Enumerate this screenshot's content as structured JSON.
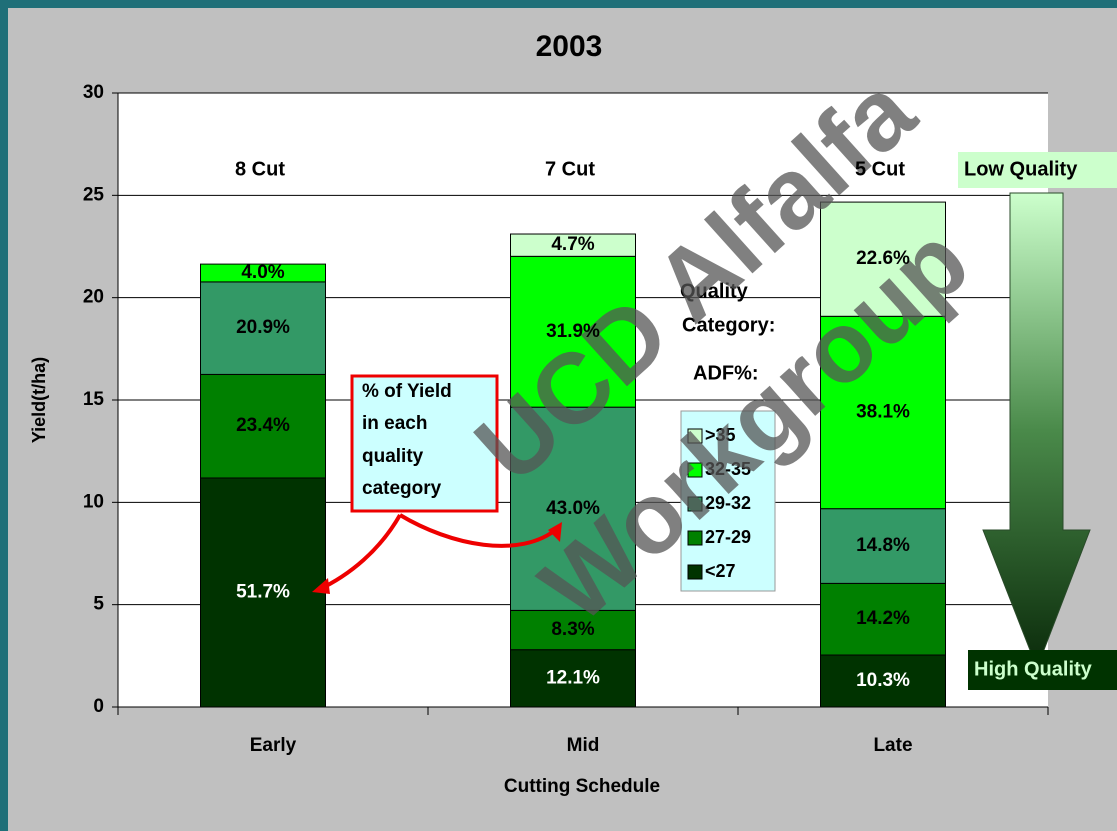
{
  "chart_data": {
    "type": "bar",
    "stacked": true,
    "title": "2003",
    "x_label": "Cutting Schedule",
    "y_label": "Yield(t/ha)",
    "categories": [
      "Early",
      "Mid",
      "Late"
    ],
    "cut_labels": [
      "8 Cut",
      "7 Cut",
      "5 Cut"
    ],
    "series": [
      {
        "name": "<27",
        "color": "#003300",
        "label_color": "#ffffff",
        "values": [
          11.19,
          2.8,
          2.54
        ],
        "value_labels": [
          "51.7%",
          "12.1%",
          "10.3%"
        ]
      },
      {
        "name": "27-29",
        "color": "#008000",
        "label_color": "#000000",
        "values": [
          5.06,
          1.92,
          3.5
        ],
        "value_labels": [
          "23.4%",
          "8.3%",
          "14.2%"
        ]
      },
      {
        "name": "29-32",
        "color": "#339966",
        "label_color": "#000000",
        "values": [
          4.52,
          9.93,
          3.65
        ],
        "value_labels": [
          "20.9%",
          "43.0%",
          "14.8%"
        ]
      },
      {
        "name": "32-35",
        "color": "#00ff00",
        "label_color": "#000000",
        "values": [
          0.87,
          7.37,
          9.4
        ],
        "value_labels": [
          "4.0%",
          "31.9%",
          "38.1%"
        ]
      },
      {
        "name": ">35",
        "color": "#ccffcc",
        "label_color": "#000000",
        "values": [
          0,
          1.09,
          5.58
        ],
        "value_labels": [
          null,
          "4.7%",
          "22.6%"
        ]
      }
    ],
    "ylim": [
      0,
      30
    ],
    "yticks": [
      0,
      5,
      10,
      15,
      20,
      25,
      30
    ],
    "grid": true,
    "legend_title": [
      "Quality",
      "Category:",
      "ADF%:"
    ],
    "callout": [
      "% of Yield",
      "in each",
      "quality",
      "category"
    ],
    "quality_scale": {
      "top": "Low Quality",
      "bottom": "High Quality"
    },
    "watermark": [
      "UCD Alfalfa",
      "Workgroup"
    ]
  }
}
